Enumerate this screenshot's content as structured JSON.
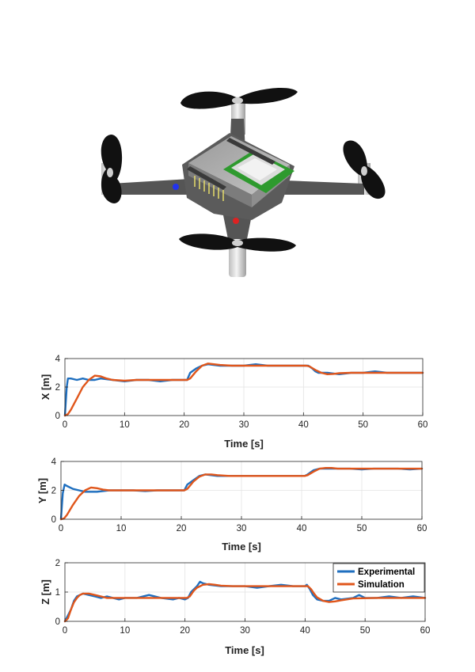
{
  "illustration": {
    "subject": "quadrotor-drone",
    "colors": {
      "frame": "#5b5b5b",
      "propeller": "#111111",
      "motor": "#d9d9d9",
      "board": "#aeaeae",
      "pcb": "#2e9a2e",
      "led_blue": "#2233ee",
      "led_red": "#dd2222",
      "pins": "#e8e070"
    }
  },
  "colors": {
    "experimental": "#1f6fbf",
    "simulation": "#e0561b",
    "grid": "#e3e3e3",
    "axis": "#262626"
  },
  "legend": {
    "placement": "top-right",
    "entries": [
      "Experimental",
      "Simulation"
    ]
  },
  "chart_data": [
    {
      "type": "line",
      "xlabel": "Time [s]",
      "ylabel": "X [m]",
      "xlim": [
        0,
        60
      ],
      "ylim": [
        0,
        4
      ],
      "xticks": [
        0,
        10,
        20,
        30,
        40,
        50,
        60
      ],
      "yticks": [
        0,
        2,
        4
      ],
      "grid": true,
      "legend": false,
      "series": [
        {
          "key": "experimental",
          "x": [
            0,
            0.3,
            0.5,
            1,
            2,
            3,
            4,
            5,
            6,
            8,
            10,
            12,
            14,
            16,
            18,
            19.5,
            20.5,
            21,
            22,
            23,
            24,
            26,
            28,
            30,
            32,
            34,
            36,
            38,
            40,
            40.8,
            41.5,
            42,
            42.5,
            43,
            44,
            46,
            48,
            50,
            52,
            54,
            56,
            58,
            60
          ],
          "y": [
            0,
            2.0,
            2.6,
            2.6,
            2.5,
            2.6,
            2.5,
            2.5,
            2.6,
            2.5,
            2.4,
            2.5,
            2.5,
            2.4,
            2.5,
            2.5,
            2.5,
            3.0,
            3.3,
            3.5,
            3.6,
            3.5,
            3.5,
            3.5,
            3.6,
            3.5,
            3.5,
            3.5,
            3.5,
            3.5,
            3.3,
            3.1,
            3.0,
            3.0,
            3.0,
            2.9,
            3.0,
            3.0,
            3.1,
            3.0,
            3.0,
            3.0,
            3.0
          ]
        },
        {
          "key": "simulation",
          "x": [
            0,
            0.5,
            1,
            2,
            3,
            4,
            5,
            6,
            7,
            8,
            10,
            12,
            15,
            18,
            20.5,
            21,
            22,
            23,
            24,
            25,
            26,
            28,
            30,
            35,
            40.5,
            41,
            42,
            43,
            44,
            45,
            46,
            48,
            52,
            56,
            60
          ],
          "y": [
            0,
            0.1,
            0.4,
            1.2,
            2.0,
            2.5,
            2.8,
            2.75,
            2.6,
            2.5,
            2.45,
            2.5,
            2.5,
            2.5,
            2.5,
            2.6,
            3.1,
            3.5,
            3.65,
            3.6,
            3.55,
            3.5,
            3.5,
            3.5,
            3.5,
            3.45,
            3.2,
            3.0,
            2.9,
            2.92,
            2.97,
            3.0,
            3.0,
            3.0,
            3.0
          ]
        }
      ]
    },
    {
      "type": "line",
      "xlabel": "Time [s]",
      "ylabel": "Y [m]",
      "xlim": [
        0,
        60
      ],
      "ylim": [
        0,
        4
      ],
      "xticks": [
        0,
        10,
        20,
        30,
        40,
        50,
        60
      ],
      "yticks": [
        0,
        2,
        4
      ],
      "grid": true,
      "legend": false,
      "series": [
        {
          "key": "experimental",
          "x": [
            0,
            0.3,
            0.6,
            1,
            2,
            3,
            4,
            5,
            6,
            7,
            8,
            10,
            12,
            14,
            16,
            18,
            20,
            20.5,
            21,
            22,
            23,
            24,
            26,
            28,
            30,
            32,
            34,
            36,
            38,
            40,
            40.5,
            41,
            42,
            43,
            44,
            46,
            48,
            50,
            52,
            54,
            56,
            58,
            60
          ],
          "y": [
            0,
            1.8,
            2.4,
            2.3,
            2.1,
            2.0,
            1.9,
            1.9,
            1.9,
            1.95,
            2.0,
            2.0,
            2.0,
            1.95,
            2.0,
            2.0,
            2.0,
            2.0,
            2.4,
            2.7,
            3.0,
            3.1,
            3.0,
            3.0,
            3.0,
            3.0,
            3.0,
            3.0,
            3.0,
            3.0,
            3.0,
            3.1,
            3.4,
            3.5,
            3.5,
            3.5,
            3.5,
            3.45,
            3.5,
            3.5,
            3.5,
            3.45,
            3.5
          ]
        },
        {
          "key": "simulation",
          "x": [
            0,
            0.5,
            1,
            2,
            3,
            4,
            5,
            6,
            7,
            8,
            10,
            12,
            15,
            18,
            20.5,
            21,
            22,
            23,
            24,
            25,
            26,
            28,
            30,
            35,
            40.5,
            41,
            42,
            43,
            44,
            45,
            46,
            48,
            52,
            56,
            60
          ],
          "y": [
            0,
            0.05,
            0.3,
            1.0,
            1.6,
            2.0,
            2.2,
            2.15,
            2.05,
            2.0,
            2.0,
            2.0,
            2.0,
            2.0,
            2.0,
            2.1,
            2.6,
            2.95,
            3.1,
            3.1,
            3.05,
            3.0,
            3.0,
            3.0,
            3.0,
            3.05,
            3.3,
            3.5,
            3.55,
            3.55,
            3.5,
            3.5,
            3.5,
            3.5,
            3.5
          ]
        }
      ]
    },
    {
      "type": "line",
      "xlabel": "Time [s]",
      "ylabel": "Z [m]",
      "xlim": [
        0,
        60
      ],
      "ylim": [
        0,
        2
      ],
      "xticks": [
        0,
        10,
        20,
        30,
        40,
        50,
        60
      ],
      "yticks": [
        0,
        1,
        2
      ],
      "grid": true,
      "legend": true,
      "series": [
        {
          "name": "Experimental",
          "key": "experimental",
          "x": [
            0,
            0.5,
            1,
            1.5,
            2,
            3,
            4,
            5,
            6,
            7,
            8,
            9,
            10,
            12,
            14,
            16,
            18,
            19,
            20,
            20.5,
            21,
            22,
            22.5,
            23,
            24,
            26,
            28,
            30,
            32,
            34,
            36,
            38,
            40,
            40.3,
            40.8,
            41.3,
            42,
            43,
            44,
            45,
            46,
            48,
            49,
            50,
            52,
            54,
            56,
            58,
            60
          ],
          "y": [
            0,
            0.2,
            0.4,
            0.7,
            0.85,
            0.95,
            0.9,
            0.85,
            0.8,
            0.85,
            0.8,
            0.75,
            0.8,
            0.8,
            0.9,
            0.8,
            0.75,
            0.8,
            0.75,
            0.8,
            1.0,
            1.2,
            1.35,
            1.3,
            1.25,
            1.2,
            1.2,
            1.2,
            1.15,
            1.2,
            1.25,
            1.2,
            1.2,
            1.25,
            1.1,
            0.9,
            0.75,
            0.7,
            0.7,
            0.8,
            0.75,
            0.8,
            0.9,
            0.8,
            0.8,
            0.85,
            0.8,
            0.85,
            0.8
          ]
        },
        {
          "name": "Simulation",
          "key": "simulation",
          "x": [
            0,
            0.5,
            1,
            1.5,
            2,
            2.5,
            3,
            4,
            5,
            6,
            7,
            8,
            10,
            15,
            20.3,
            20.8,
            21.5,
            22,
            23,
            24,
            25,
            26,
            28,
            30,
            35,
            40.5,
            41,
            41.5,
            42,
            43,
            44,
            45,
            46,
            48,
            52,
            56,
            60
          ],
          "y": [
            0,
            0.1,
            0.4,
            0.65,
            0.8,
            0.9,
            0.95,
            0.95,
            0.9,
            0.85,
            0.8,
            0.8,
            0.8,
            0.8,
            0.8,
            0.85,
            1.05,
            1.15,
            1.25,
            1.27,
            1.25,
            1.22,
            1.2,
            1.2,
            1.2,
            1.2,
            1.1,
            0.95,
            0.82,
            0.7,
            0.66,
            0.68,
            0.72,
            0.78,
            0.8,
            0.8,
            0.8
          ]
        }
      ]
    }
  ]
}
